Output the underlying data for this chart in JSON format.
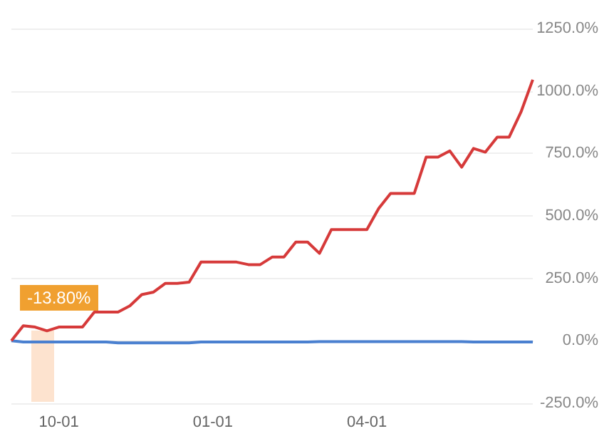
{
  "chart_data": {
    "type": "line",
    "categories": [
      null,
      null,
      null,
      null,
      "10-01",
      null,
      null,
      null,
      null,
      null,
      null,
      null,
      null,
      null,
      null,
      null,
      null,
      "01-01",
      null,
      null,
      null,
      null,
      null,
      null,
      null,
      null,
      null,
      null,
      null,
      null,
      "04-01",
      null,
      null,
      null,
      null,
      null,
      null,
      null,
      null,
      null,
      null,
      null,
      null,
      null,
      null
    ],
    "series": [
      {
        "color": "#d63a3a",
        "values": [
          0,
          60,
          55,
          40,
          55,
          55,
          55,
          115,
          115,
          115,
          140,
          185,
          195,
          230,
          230,
          235,
          315,
          315,
          315,
          315,
          305,
          305,
          335,
          335,
          395,
          395,
          350,
          445,
          445,
          445,
          445,
          530,
          590,
          590,
          590,
          735,
          735,
          760,
          695,
          770,
          755,
          815,
          815,
          915,
          1045
        ]
      },
      {
        "color": "#4a80d0",
        "values": [
          0,
          -5,
          -5,
          -5,
          -5,
          -5,
          -5,
          -5,
          -5,
          -8,
          -8,
          -8,
          -8,
          -8,
          -8,
          -8,
          -5,
          -5,
          -5,
          -5,
          -5,
          -5,
          -5,
          -5,
          -5,
          -5,
          -3,
          -3,
          -3,
          -3,
          -3,
          -3,
          -3,
          -3,
          -3,
          -3,
          -3,
          -3,
          -3,
          -5,
          -5,
          -5,
          -5,
          -5,
          -5
        ]
      }
    ],
    "ylim": [
      -250,
      1250
    ],
    "yticks": [
      {
        "value": -250,
        "label": "-250.0%"
      },
      {
        "value": 0,
        "label": "0.0%"
      },
      {
        "value": 250,
        "label": "250.0%"
      },
      {
        "value": 500,
        "label": "500.0%"
      },
      {
        "value": 750,
        "label": "750.0%"
      },
      {
        "value": 1000,
        "label": "1000.0%"
      },
      {
        "value": 1250,
        "label": "1250.0%"
      }
    ],
    "grid": "y",
    "marker": "none",
    "annotations": [
      "-13.80%"
    ]
  }
}
